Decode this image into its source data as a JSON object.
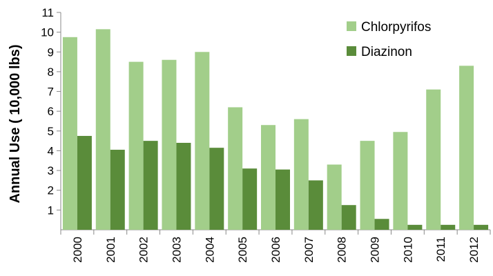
{
  "chart_data": {
    "type": "bar",
    "title": "",
    "xlabel": "",
    "ylabel": "Annual Use ( 10,000 lbs)",
    "ylim": [
      0,
      11
    ],
    "yticks": [
      1,
      2,
      3,
      4,
      5,
      6,
      7,
      8,
      9,
      10,
      11
    ],
    "grid": false,
    "legend_position": "top-right",
    "categories": [
      "2000",
      "2001",
      "2002",
      "2003",
      "2004",
      "2005",
      "2006",
      "2007",
      "2008",
      "2009",
      "2010",
      "2011",
      "2012"
    ],
    "series": [
      {
        "name": "Chlorpyrifos",
        "color": "#a2ce8a",
        "values": [
          9.75,
          10.15,
          8.5,
          8.6,
          9.0,
          6.2,
          5.3,
          5.6,
          3.3,
          4.5,
          4.95,
          7.1,
          8.3
        ]
      },
      {
        "name": "Diazinon",
        "color": "#5a8c3a",
        "values": [
          4.75,
          4.05,
          4.5,
          4.4,
          4.15,
          3.1,
          3.05,
          2.5,
          1.25,
          0.55,
          0.25,
          0.25,
          0.25
        ]
      }
    ]
  }
}
